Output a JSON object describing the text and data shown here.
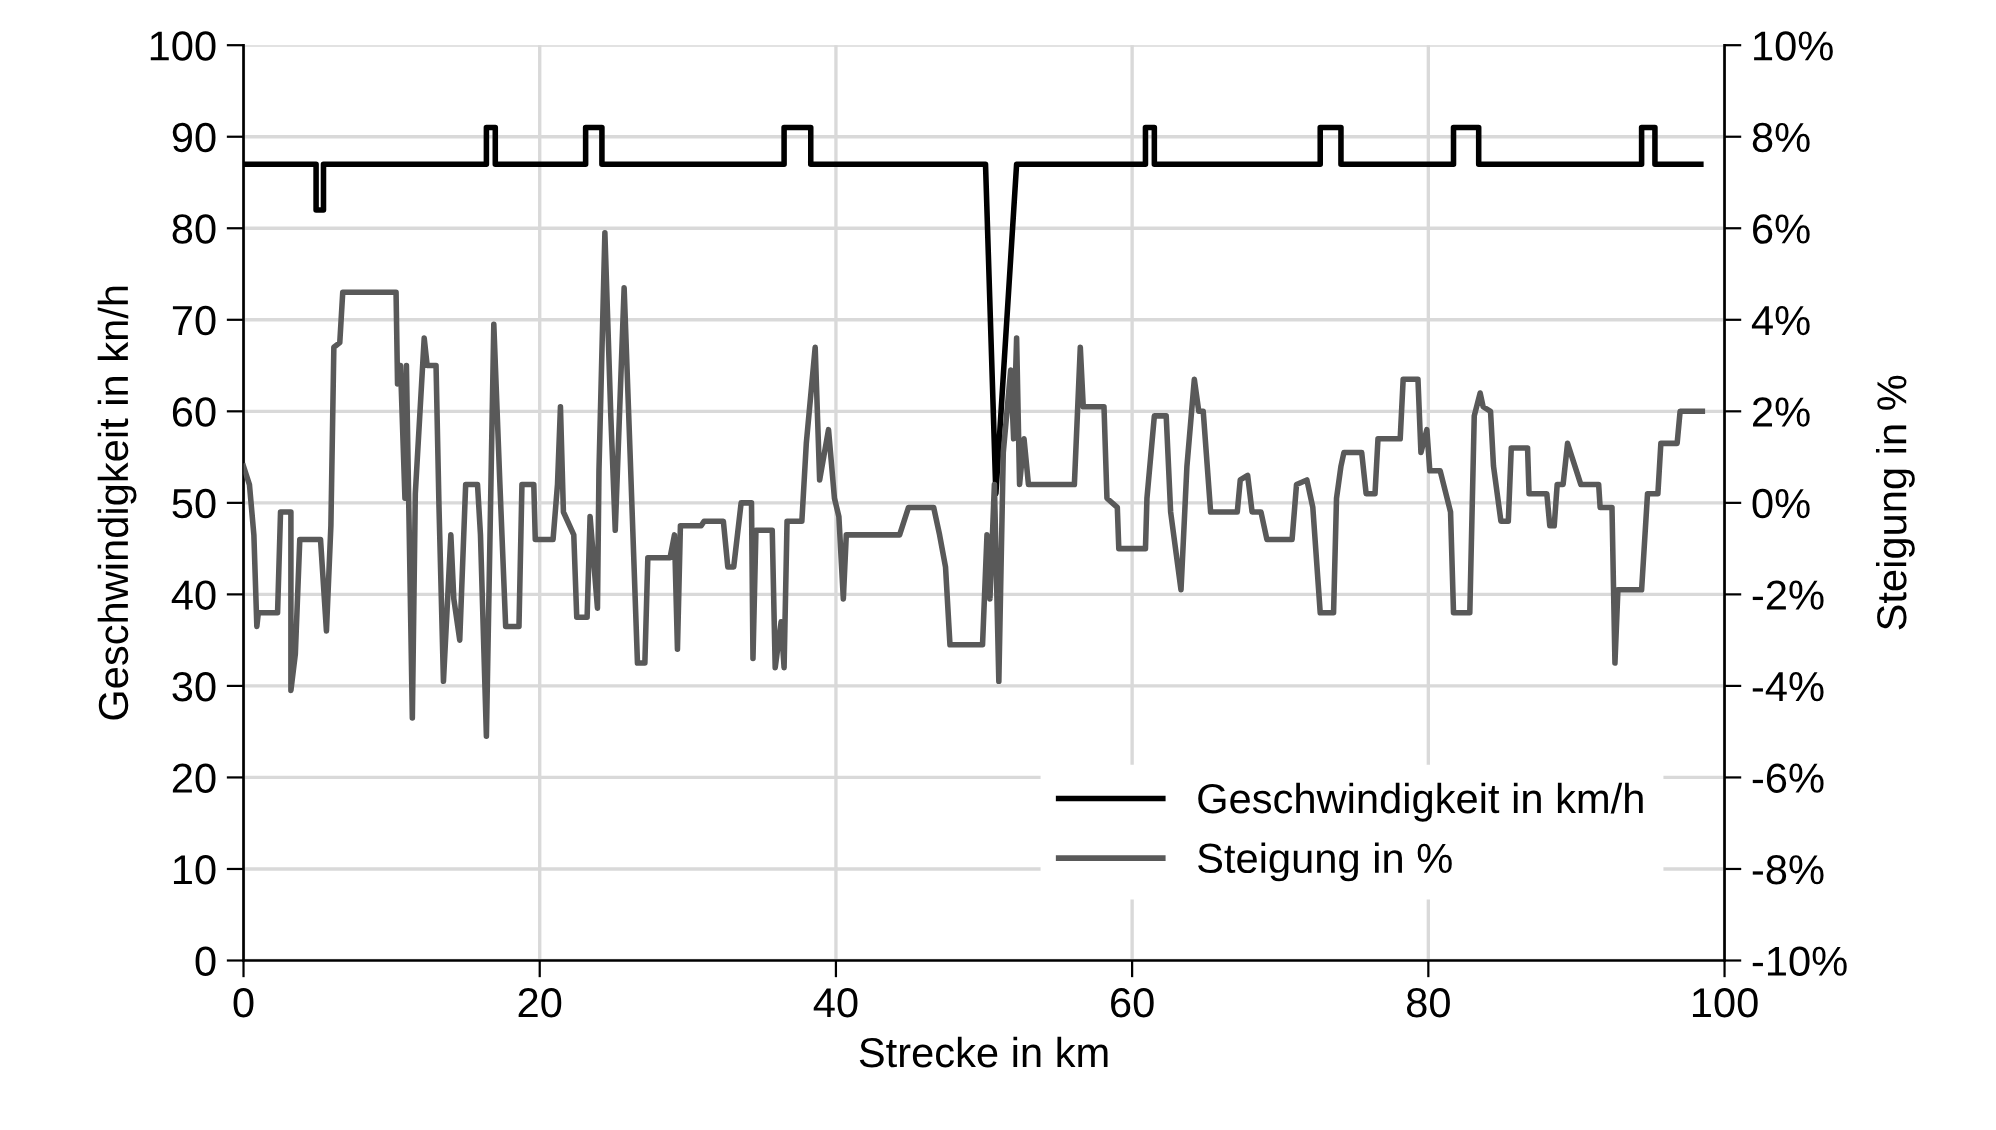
{
  "chart_data": {
    "type": "line",
    "xlabel": "Strecke in km",
    "ylabel": "Geschwindigkeit in kn/h",
    "y2label": "Steigung in %",
    "xlim": [
      0,
      100
    ],
    "xticks": [
      0,
      20,
      40,
      60,
      80,
      100
    ],
    "ylim": [
      0,
      100
    ],
    "yticks": [
      0,
      10,
      20,
      30,
      40,
      50,
      60,
      70,
      80,
      90,
      100
    ],
    "y2lim": [
      -10,
      10
    ],
    "y2ticks": [
      {
        "value": -10,
        "label": "-10%"
      },
      {
        "value": -8,
        "label": "-8%"
      },
      {
        "value": -6,
        "label": "-6%"
      },
      {
        "value": -4,
        "label": "-4%"
      },
      {
        "value": -2,
        "label": "-2%"
      },
      {
        "value": 0,
        "label": "0%"
      },
      {
        "value": 2,
        "label": "2%"
      },
      {
        "value": 4,
        "label": "4%"
      },
      {
        "value": 6,
        "label": "6%"
      },
      {
        "value": 8,
        "label": "8%"
      },
      {
        "value": 10,
        "label": "10%"
      }
    ],
    "grid": true,
    "legend": "bottom right",
    "line_style": "solid",
    "marker": "none",
    "series": [
      {
        "name": "Geschwindigkeit in km/h",
        "color": "#000000",
        "x": [
          0,
          4.9,
          4.9,
          5.4,
          5.4,
          16.4,
          16.4,
          17.0,
          17.0,
          23.1,
          23.1,
          24.2,
          24.2,
          36.5,
          36.5,
          38.3,
          38.3,
          50.1,
          50.8,
          52.2,
          60.9,
          60.9,
          61.5,
          61.5,
          72.7,
          72.7,
          74.1,
          74.1,
          81.7,
          81.7,
          83.4,
          83.4,
          94.4,
          94.4,
          95.3,
          95.3,
          98.4
        ],
        "values": [
          87,
          87,
          82,
          82,
          87,
          87,
          91,
          91,
          87,
          87,
          91,
          91,
          87,
          87,
          91,
          91,
          87,
          87,
          51,
          87,
          87,
          91,
          91,
          87,
          87,
          91,
          91,
          87,
          87,
          91,
          91,
          87,
          87,
          91,
          91,
          87,
          87
        ]
      },
      {
        "name": "Steigung in %",
        "color": "#595959",
        "axis": "y2",
        "x": [
          0.0,
          0.4,
          0.7,
          0.9,
          1.0,
          2.3,
          2.5,
          3.2,
          3.2,
          3.5,
          3.8,
          5.2,
          5.6,
          5.9,
          6.1,
          6.5,
          6.7,
          10.3,
          10.4,
          10.6,
          10.9,
          11.0,
          11.4,
          11.6,
          12.2,
          12.4,
          13.0,
          13.2,
          13.5,
          14.0,
          14.2,
          14.6,
          15.0,
          15.8,
          16.0,
          16.4,
          16.9,
          17.3,
          17.7,
          18.6,
          18.8,
          19.6,
          19.7,
          20.9,
          21.2,
          21.4,
          21.6,
          22.3,
          22.5,
          23.2,
          23.4,
          23.9,
          24.0,
          24.4,
          24.8,
          25.1,
          25.7,
          26.1,
          26.6,
          27.1,
          27.3,
          28.8,
          29.1,
          29.3,
          29.5,
          30.9,
          31.1,
          32.4,
          32.7,
          33.1,
          33.6,
          34.3,
          34.4,
          34.6,
          35.7,
          35.9,
          36.3,
          36.5,
          36.7,
          37.7,
          38.0,
          38.6,
          38.9,
          39.5,
          39.9,
          40.2,
          40.5,
          40.7,
          44.3,
          44.9,
          46.6,
          47.0,
          47.4,
          47.7,
          49.9,
          50.2,
          50.4,
          50.7,
          51.0,
          51.3,
          51.8,
          52.0,
          52.2,
          52.4,
          52.7,
          53.0,
          56.1,
          56.5,
          56.7,
          58.1,
          58.3,
          59.0,
          59.1,
          60.9,
          61.0,
          61.5,
          62.3,
          62.6,
          63.3,
          63.7,
          64.2,
          64.5,
          64.8,
          65.3,
          67.1,
          67.3,
          67.8,
          68.1,
          68.7,
          69.1,
          70.8,
          71.1,
          71.8,
          72.2,
          72.7,
          73.6,
          73.8,
          74.1,
          74.3,
          75.5,
          75.8,
          76.4,
          76.6,
          78.1,
          78.3,
          79.3,
          79.5,
          79.9,
          80.1,
          80.8,
          81.5,
          81.7,
          82.8,
          83.1,
          83.5,
          83.7,
          84.2,
          84.4,
          84.9,
          85.4,
          85.6,
          86.7,
          86.8,
          88.0,
          88.2,
          88.5,
          88.7,
          89.1,
          89.4,
          89.7,
          90.3,
          91.5,
          91.6,
          92.4,
          92.6,
          92.8,
          94.4,
          94.8,
          95.5,
          95.7,
          96.8,
          97.0,
          98.5
        ],
        "values": [
          0.8,
          0.4,
          -0.7,
          -2.7,
          -2.4,
          -2.4,
          -0.2,
          -0.2,
          -4.1,
          -3.3,
          -0.8,
          -0.8,
          -2.8,
          -0.5,
          3.4,
          3.5,
          4.6,
          4.6,
          2.6,
          3.0,
          0.1,
          3.0,
          -4.7,
          0.2,
          3.6,
          3.0,
          3.0,
          -0.1,
          -3.9,
          -0.7,
          -2.1,
          -3.0,
          0.4,
          0.4,
          -0.7,
          -5.1,
          3.9,
          0.5,
          -2.7,
          -2.7,
          0.4,
          0.4,
          -0.8,
          -0.8,
          0.4,
          2.1,
          -0.2,
          -0.7,
          -2.5,
          -2.5,
          -0.3,
          -2.3,
          0.7,
          5.9,
          1.9,
          -0.6,
          4.7,
          1.1,
          -3.5,
          -3.5,
          -1.2,
          -1.2,
          -0.7,
          -3.2,
          -0.5,
          -0.5,
          -0.4,
          -0.4,
          -1.4,
          -1.4,
          0.0,
          0.0,
          -3.4,
          -0.6,
          -0.6,
          -3.6,
          -2.6,
          -3.6,
          -0.4,
          -0.4,
          1.3,
          3.4,
          0.5,
          1.6,
          0.1,
          -0.3,
          -2.1,
          -0.7,
          -0.7,
          -0.1,
          -0.1,
          -0.7,
          -1.4,
          -3.1,
          -3.1,
          -0.7,
          -2.1,
          0.4,
          -3.9,
          1.1,
          2.9,
          1.4,
          3.6,
          0.4,
          1.4,
          0.4,
          0.4,
          3.4,
          2.1,
          2.1,
          0.1,
          -0.1,
          -1.0,
          -1.0,
          0.1,
          1.9,
          1.9,
          -0.2,
          -1.9,
          0.8,
          2.7,
          2.0,
          2.0,
          -0.2,
          -0.2,
          0.5,
          0.6,
          -0.2,
          -0.2,
          -0.8,
          -0.8,
          0.4,
          0.5,
          -0.1,
          -2.4,
          -2.4,
          0.1,
          0.8,
          1.1,
          1.1,
          0.2,
          0.2,
          1.4,
          1.4,
          2.7,
          2.7,
          1.1,
          1.6,
          0.7,
          0.7,
          -0.2,
          -2.4,
          -2.4,
          1.9,
          2.4,
          2.1,
          2.0,
          0.8,
          -0.4,
          -0.4,
          1.2,
          1.2,
          0.2,
          0.2,
          -0.5,
          -0.5,
          0.4,
          0.4,
          1.3,
          1.0,
          0.4,
          0.4,
          -0.1,
          -0.1,
          -3.5,
          -1.9,
          -1.9,
          0.2,
          0.2,
          1.3,
          1.3,
          2.0,
          2.0
        ]
      }
    ]
  }
}
